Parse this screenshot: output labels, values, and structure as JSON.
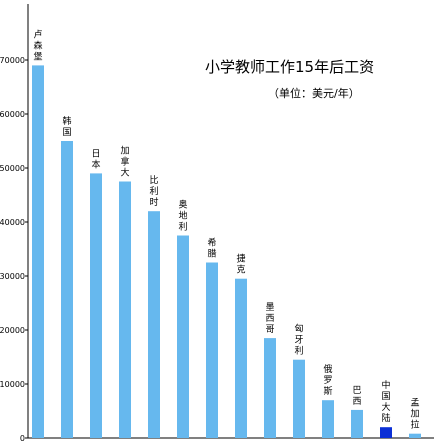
{
  "chart_data": {
    "type": "bar",
    "title": "小学教师工作15年后工资",
    "subtitle": "（单位：美元/年）",
    "categories": [
      "卢森堡",
      "韩国",
      "日本",
      "加拿大",
      "比利时",
      "奥地利",
      "希腊",
      "捷克",
      "墨西哥",
      "匈牙利",
      "俄罗斯",
      "巴西",
      "中国大陆",
      "孟加拉"
    ],
    "values": [
      69000,
      55000,
      49000,
      47500,
      42000,
      37500,
      32500,
      29500,
      18500,
      14500,
      7000,
      5200,
      2000,
      800
    ],
    "highlight_index": 12,
    "colors": {
      "bar": "#66b8ee",
      "highlight": "#0b2fd6",
      "axis": "#000000"
    },
    "ylim": [
      0,
      75000
    ],
    "yticks": [
      0,
      10000,
      20000,
      30000,
      40000,
      50000,
      60000,
      70000
    ],
    "grid": false,
    "legend": "none"
  }
}
